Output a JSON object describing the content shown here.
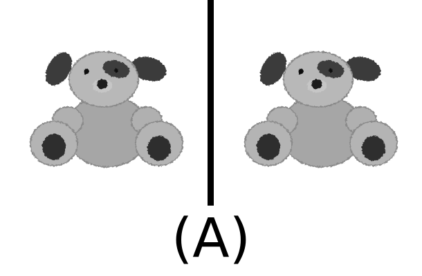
{
  "caption": "(A)",
  "images": [
    {
      "name": "teddy-bear-left",
      "icon": "teddy-bear-icon"
    },
    {
      "name": "teddy-bear-right",
      "icon": "teddy-bear-icon"
    }
  ],
  "colors": {
    "fur": "#a8a8a8",
    "fur_light": "#c9c9c9",
    "dark_patch": "#333333",
    "divider": "#000000",
    "background": "#ffffff"
  }
}
